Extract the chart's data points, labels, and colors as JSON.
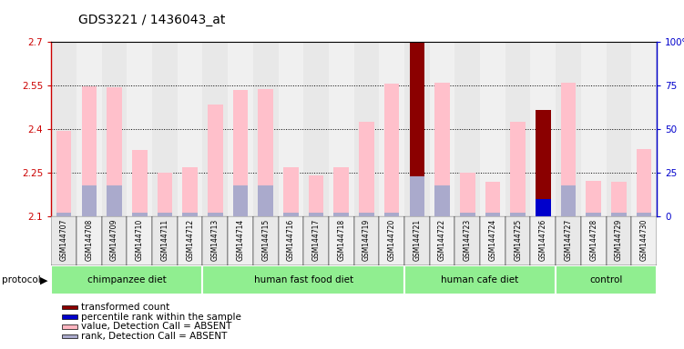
{
  "title": "GDS3221 / 1436043_at",
  "samples": [
    "GSM144707",
    "GSM144708",
    "GSM144709",
    "GSM144710",
    "GSM144711",
    "GSM144712",
    "GSM144713",
    "GSM144714",
    "GSM144715",
    "GSM144716",
    "GSM144717",
    "GSM144718",
    "GSM144719",
    "GSM144720",
    "GSM144721",
    "GSM144722",
    "GSM144723",
    "GSM144724",
    "GSM144725",
    "GSM144726",
    "GSM144727",
    "GSM144728",
    "GSM144729",
    "GSM144730"
  ],
  "value_heights": [
    2.395,
    2.548,
    2.543,
    2.327,
    2.25,
    2.268,
    2.485,
    2.534,
    2.537,
    2.268,
    2.24,
    2.268,
    2.425,
    2.555,
    2.7,
    2.56,
    2.25,
    2.218,
    2.425,
    2.467,
    2.56,
    2.222,
    2.218,
    2.33
  ],
  "rank_heights_pct": [
    2,
    18,
    18,
    2,
    2,
    2,
    2,
    18,
    18,
    2,
    2,
    2,
    2,
    2,
    23,
    18,
    2,
    2,
    2,
    10,
    18,
    2,
    2,
    2
  ],
  "value_colors": [
    "pink",
    "pink",
    "pink",
    "pink",
    "pink",
    "pink",
    "pink",
    "pink",
    "pink",
    "pink",
    "pink",
    "pink",
    "pink",
    "pink",
    "#8B0000",
    "pink",
    "pink",
    "pink",
    "pink",
    "#8B0000",
    "pink",
    "pink",
    "pink",
    "pink"
  ],
  "rank_colors": [
    "#aaaacc",
    "#aaaacc",
    "#aaaacc",
    "#aaaacc",
    "#aaaacc",
    "#aaaacc",
    "#aaaacc",
    "#aaaacc",
    "#aaaacc",
    "#aaaacc",
    "#aaaacc",
    "#aaaacc",
    "#aaaacc",
    "#aaaacc",
    "#aaaacc",
    "#aaaacc",
    "#aaaacc",
    "#aaaacc",
    "#aaaacc",
    "#0000cc",
    "#aaaacc",
    "#aaaacc",
    "#aaaacc",
    "#aaaacc"
  ],
  "groups": [
    {
      "label": "chimpanzee diet",
      "start": 0,
      "end": 5
    },
    {
      "label": "human fast food diet",
      "start": 6,
      "end": 13
    },
    {
      "label": "human cafe diet",
      "start": 14,
      "end": 19
    },
    {
      "label": "control",
      "start": 20,
      "end": 23
    }
  ],
  "ylim_left": [
    2.1,
    2.7
  ],
  "ylim_right": [
    0,
    100
  ],
  "yticks_left": [
    2.1,
    2.25,
    2.4,
    2.55,
    2.7
  ],
  "yticks_right": [
    0,
    25,
    50,
    75,
    100
  ],
  "ytick_labels_left": [
    "2.1",
    "2.25",
    "2.4",
    "2.55",
    "2.7"
  ],
  "ytick_labels_right": [
    "0",
    "25",
    "50",
    "75",
    "100%"
  ],
  "left_axis_color": "#cc0000",
  "right_axis_color": "#0000cc",
  "bar_width": 0.6,
  "group_color": "#90EE90",
  "group_color_alt": "#aaddaa",
  "bg_color": "#ffffff",
  "col_bg_even": "#e8e8e8",
  "col_bg_odd": "#f0f0f0",
  "legend_items": [
    {
      "color": "#8B0000",
      "label": "transformed count"
    },
    {
      "color": "#0000cc",
      "label": "percentile rank within the sample"
    },
    {
      "color": "#ffb6c1",
      "label": "value, Detection Call = ABSENT"
    },
    {
      "color": "#aaaacc",
      "label": "rank, Detection Call = ABSENT"
    }
  ]
}
